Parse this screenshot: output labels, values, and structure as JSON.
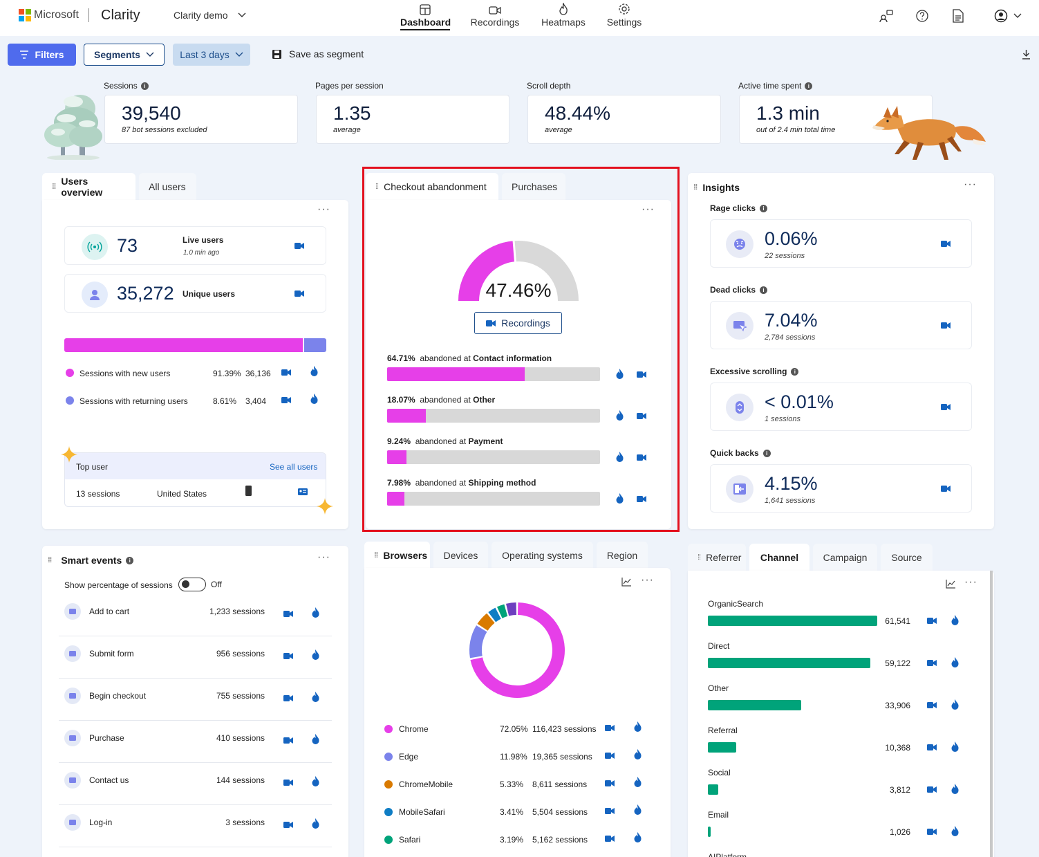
{
  "header": {
    "brand": "Microsoft",
    "product": "Clarity",
    "project": "Clarity demo",
    "nav": [
      {
        "label": "Dashboard",
        "icon": "dashboard-icon"
      },
      {
        "label": "Recordings",
        "icon": "video-camera-icon"
      },
      {
        "label": "Heatmaps",
        "icon": "flame-icon"
      },
      {
        "label": "Settings",
        "icon": "gear-icon"
      }
    ],
    "active_nav": "Dashboard",
    "logo_colors": [
      "#f25022",
      "#7fba00",
      "#00a4ef",
      "#ffb900"
    ]
  },
  "toolbar": {
    "filters": "Filters",
    "segments": "Segments",
    "date_range": "Last 3 days",
    "save_segment": "Save as segment"
  },
  "metrics": [
    {
      "label": "Sessions",
      "value": "39,540",
      "sub": "87 bot sessions excluded",
      "info": true
    },
    {
      "label": "Pages per session",
      "value": "1.35",
      "sub": "average",
      "info": false
    },
    {
      "label": "Scroll depth",
      "value": "48.44%",
      "sub": "average",
      "info": false
    },
    {
      "label": "Active time spent",
      "value": "1.3 min",
      "sub": "out of 2.4 min total time",
      "info": true
    }
  ],
  "users_overview": {
    "tabs": [
      "Users overview",
      "All users"
    ],
    "live": {
      "value": "73",
      "label": "Live users",
      "sub": "1.0 min ago"
    },
    "unique": {
      "value": "35,272",
      "label": "Unique users"
    },
    "split": {
      "new_fraction": 0.9139
    },
    "legend": [
      {
        "label": "Sessions with new users",
        "pct": "91.39%",
        "count": "36,136",
        "color": "#e63fe8"
      },
      {
        "label": "Sessions with returning users",
        "pct": "8.61%",
        "count": "3,404",
        "color": "#7b83eb"
      }
    ],
    "top_user": {
      "title": "Top user",
      "link": "See all users",
      "sessions": "13 sessions",
      "country": "United States"
    }
  },
  "checkout": {
    "tabs": [
      "Checkout abandonment",
      "Purchases"
    ],
    "gauge_value": "47.46%",
    "gauge_fraction": 0.4746,
    "recordings_button": "Recordings",
    "rows": [
      {
        "pct": "64.71%",
        "prefix": "abandoned at",
        "step": "Contact information",
        "fraction": 0.6471
      },
      {
        "pct": "18.07%",
        "prefix": "abandoned at",
        "step": "Other",
        "fraction": 0.1807
      },
      {
        "pct": "9.24%",
        "prefix": "abandoned at",
        "step": "Payment",
        "fraction": 0.0924
      },
      {
        "pct": "7.98%",
        "prefix": "abandoned at",
        "step": "Shipping method",
        "fraction": 0.0798
      }
    ],
    "highlight_color": "#e3101e"
  },
  "insights": {
    "title": "Insights",
    "items": [
      {
        "label": "Rage clicks",
        "value": "0.06%",
        "sub": "22 sessions",
        "icon": "angry-face-icon"
      },
      {
        "label": "Dead clicks",
        "value": "7.04%",
        "sub": "2,784 sessions",
        "icon": "dead-click-icon"
      },
      {
        "label": "Excessive scrolling",
        "value": "< 0.01%",
        "sub": "1 sessions",
        "icon": "scroll-icon"
      },
      {
        "label": "Quick backs",
        "value": "4.15%",
        "sub": "1,641 sessions",
        "icon": "back-arrow-icon"
      }
    ]
  },
  "smart_events": {
    "title": "Smart events",
    "toggle_label": "Show percentage of sessions",
    "toggle_state": "Off",
    "events": [
      {
        "name": "Add to cart",
        "count": "1,233 sessions",
        "icon": "cart-icon"
      },
      {
        "name": "Submit form",
        "count": "956 sessions",
        "icon": "form-icon"
      },
      {
        "name": "Begin checkout",
        "count": "755 sessions",
        "icon": "card-icon"
      },
      {
        "name": "Purchase",
        "count": "410 sessions",
        "icon": "bag-icon"
      },
      {
        "name": "Contact us",
        "count": "144 sessions",
        "icon": "contact-card-icon"
      },
      {
        "name": "Log-in",
        "count": "3 sessions",
        "icon": "person-icon"
      }
    ]
  },
  "browsers": {
    "tabs": [
      "Browsers",
      "Devices",
      "Operating systems",
      "Region"
    ],
    "items": [
      {
        "name": "Chrome",
        "pct": "72.05%",
        "sessions": "116,423 sessions",
        "color": "#e63fe8",
        "fraction": 0.7205
      },
      {
        "name": "Edge",
        "pct": "11.98%",
        "sessions": "19,365 sessions",
        "color": "#7b83eb",
        "fraction": 0.1198
      },
      {
        "name": "ChromeMobile",
        "pct": "5.33%",
        "sessions": "8,611 sessions",
        "color": "#d97a00",
        "fraction": 0.0533
      },
      {
        "name": "MobileSafari",
        "pct": "3.41%",
        "sessions": "5,504 sessions",
        "color": "#0f7dc4",
        "fraction": 0.0341
      },
      {
        "name": "Safari",
        "pct": "3.19%",
        "sessions": "5,162 sessions",
        "color": "#00a37a",
        "fraction": 0.0319
      }
    ],
    "other_color": "#6e3fbf"
  },
  "channel": {
    "tabs": [
      "Referrer",
      "Channel",
      "Campaign",
      "Source"
    ],
    "active_tab": "Channel",
    "items": [
      {
        "name": "OrganicSearch",
        "value": "61,541",
        "n": 61541
      },
      {
        "name": "Direct",
        "value": "59,122",
        "n": 59122
      },
      {
        "name": "Other",
        "value": "33,906",
        "n": 33906
      },
      {
        "name": "Referral",
        "value": "10,368",
        "n": 10368
      },
      {
        "name": "Social",
        "value": "3,812",
        "n": 3812
      },
      {
        "name": "Email",
        "value": "1,026",
        "n": 1026
      },
      {
        "name": "AIPlatform",
        "value": "",
        "n": 0
      }
    ],
    "bar_color": "#00a37a"
  }
}
